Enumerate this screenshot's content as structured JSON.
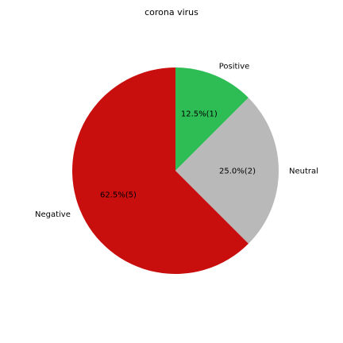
{
  "chart_data": {
    "type": "pie",
    "title": "corona virus",
    "slices": [
      {
        "label": "Positive",
        "value": 1,
        "percent_label": "12.5%(1)",
        "color": "#2ebd54"
      },
      {
        "label": "Neutral",
        "value": 2,
        "percent_label": "25.0%(2)",
        "color": "#b9b9b9"
      },
      {
        "label": "Negative",
        "value": 5,
        "percent_label": "62.5%(5)",
        "color": "#c90e0e"
      }
    ],
    "start_angle_deg": 90,
    "direction": "clockwise"
  }
}
